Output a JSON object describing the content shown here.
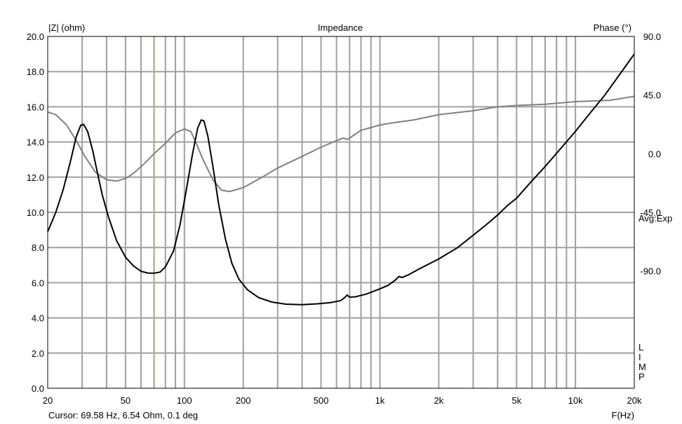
{
  "chart_data": {
    "type": "line",
    "title": "Impedance",
    "ylabel": "|Z| (ohm)",
    "y2label": "Phase (°)",
    "xlabel": "F(Hz)",
    "x_scale": "log",
    "xlim": [
      20,
      20000
    ],
    "ylim": [
      0,
      20
    ],
    "y2lim": [
      -180,
      90
    ],
    "x_ticks": [
      {
        "value": 20,
        "label": "20"
      },
      {
        "value": 50,
        "label": "50"
      },
      {
        "value": 100,
        "label": "100"
      },
      {
        "value": 200,
        "label": "200"
      },
      {
        "value": 500,
        "label": "500"
      },
      {
        "value": 1000,
        "label": "1k"
      },
      {
        "value": 2000,
        "label": "2k"
      },
      {
        "value": 5000,
        "label": "5k"
      },
      {
        "value": 10000,
        "label": "10k"
      },
      {
        "value": 20000,
        "label": "20k"
      }
    ],
    "y_ticks": [
      "0.0",
      "2.0",
      "4.0",
      "6.0",
      "8.0",
      "10.0",
      "12.0",
      "14.0",
      "16.0",
      "18.0",
      "20.0"
    ],
    "y2_ticks": [
      {
        "value": 90,
        "label": "90.0"
      },
      {
        "value": 45,
        "label": "45.0"
      },
      {
        "value": 0,
        "label": "0.0"
      },
      {
        "value": -45,
        "label": "-45.0"
      },
      {
        "value": -90,
        "label": "-90.0"
      }
    ],
    "grid": true,
    "avg_label": "Avg:Exp",
    "limp_label": "LIMP",
    "cursor": {
      "frequency": 69.58,
      "text": "Cursor: 69.58 Hz, 6.54 Ohm, 0.1 deg"
    },
    "colors": {
      "impedance": "#000000",
      "phase": "#808080",
      "cursor": "#c8c800",
      "grid": "#a0a0a0"
    },
    "series": [
      {
        "axis": "left",
        "color": "#000000",
        "points": [
          [
            20,
            8.9
          ],
          [
            22,
            10.0
          ],
          [
            24,
            11.3
          ],
          [
            26,
            12.8
          ],
          [
            28,
            14.3
          ],
          [
            29.5,
            14.95
          ],
          [
            30.5,
            15.0
          ],
          [
            32,
            14.6
          ],
          [
            34,
            13.5
          ],
          [
            36,
            12.2
          ],
          [
            38,
            11.0
          ],
          [
            41,
            9.7
          ],
          [
            45,
            8.4
          ],
          [
            50,
            7.45
          ],
          [
            55,
            6.95
          ],
          [
            60,
            6.65
          ],
          [
            65,
            6.55
          ],
          [
            69.6,
            6.54
          ],
          [
            75,
            6.6
          ],
          [
            80,
            6.9
          ],
          [
            88,
            7.8
          ],
          [
            95,
            9.3
          ],
          [
            102,
            11.2
          ],
          [
            110,
            13.3
          ],
          [
            117,
            14.8
          ],
          [
            122,
            15.25
          ],
          [
            126,
            15.2
          ],
          [
            132,
            14.3
          ],
          [
            140,
            12.6
          ],
          [
            150,
            10.4
          ],
          [
            162,
            8.5
          ],
          [
            175,
            7.1
          ],
          [
            190,
            6.2
          ],
          [
            210,
            5.6
          ],
          [
            240,
            5.15
          ],
          [
            280,
            4.9
          ],
          [
            330,
            4.78
          ],
          [
            400,
            4.75
          ],
          [
            480,
            4.8
          ],
          [
            560,
            4.87
          ],
          [
            630,
            4.98
          ],
          [
            660,
            5.15
          ],
          [
            680,
            5.3
          ],
          [
            700,
            5.18
          ],
          [
            750,
            5.2
          ],
          [
            850,
            5.35
          ],
          [
            1000,
            5.65
          ],
          [
            1100,
            5.85
          ],
          [
            1200,
            6.15
          ],
          [
            1250,
            6.35
          ],
          [
            1300,
            6.3
          ],
          [
            1400,
            6.45
          ],
          [
            1600,
            6.8
          ],
          [
            2000,
            7.35
          ],
          [
            2500,
            8.0
          ],
          [
            3000,
            8.7
          ],
          [
            3500,
            9.3
          ],
          [
            4000,
            9.85
          ],
          [
            4500,
            10.4
          ],
          [
            5000,
            10.8
          ],
          [
            6000,
            11.8
          ],
          [
            7000,
            12.6
          ],
          [
            8000,
            13.35
          ],
          [
            10000,
            14.6
          ],
          [
            12000,
            15.7
          ],
          [
            14000,
            16.6
          ],
          [
            17000,
            17.9
          ],
          [
            20000,
            19.0
          ]
        ]
      },
      {
        "axis": "right",
        "color": "#808080",
        "points": [
          [
            20,
            32
          ],
          [
            22,
            30
          ],
          [
            25,
            22
          ],
          [
            28,
            10
          ],
          [
            31,
            -2
          ],
          [
            35,
            -14
          ],
          [
            40,
            -20
          ],
          [
            45,
            -21
          ],
          [
            50,
            -19
          ],
          [
            55,
            -15
          ],
          [
            62,
            -8
          ],
          [
            70,
            0
          ],
          [
            80,
            8
          ],
          [
            90,
            16
          ],
          [
            100,
            19
          ],
          [
            108,
            17
          ],
          [
            115,
            8
          ],
          [
            125,
            -5
          ],
          [
            140,
            -20
          ],
          [
            155,
            -28
          ],
          [
            170,
            -29
          ],
          [
            200,
            -26
          ],
          [
            250,
            -18
          ],
          [
            300,
            -11
          ],
          [
            400,
            -2
          ],
          [
            500,
            5
          ],
          [
            600,
            10
          ],
          [
            650,
            12
          ],
          [
            680,
            11
          ],
          [
            700,
            12
          ],
          [
            800,
            18
          ],
          [
            1000,
            22
          ],
          [
            1200,
            24
          ],
          [
            1500,
            26
          ],
          [
            2000,
            30
          ],
          [
            3000,
            33
          ],
          [
            4000,
            36
          ],
          [
            5000,
            37
          ],
          [
            7000,
            38
          ],
          [
            10000,
            40
          ],
          [
            15000,
            41
          ],
          [
            20000,
            44
          ]
        ]
      }
    ]
  }
}
